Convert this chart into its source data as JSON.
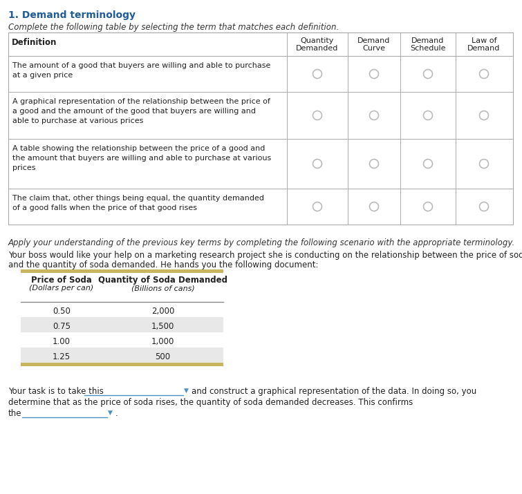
{
  "title": "1. Demand terminology",
  "title_color": "#1F5C99",
  "bg_color": "#FFFFFF",
  "subtitle": "Complete the following table by selecting the term that matches each definition.",
  "table_headers": [
    "Definition",
    "Quantity\nDemanded",
    "Demand\nCurve",
    "Demand\nSchedule",
    "Law of\nDemand"
  ],
  "table_rows": [
    "The amount of a good that buyers are willing and able to purchase\nat a given price",
    "A graphical representation of the relationship between the price of\na good and the amount of the good that buyers are willing and\nable to purchase at various prices",
    "A table showing the relationship between the price of a good and\nthe amount that buyers are willing and able to purchase at various\nprices",
    "The claim that, other things being equal, the quantity demanded\nof a good falls when the price of that good rises"
  ],
  "scenario_intro": "Apply your understanding of the previous key terms by completing the following scenario with the appropriate terminology.",
  "scenario_text1": "Your boss would like your help on a marketing research project she is conducting on the relationship between the price of soda",
  "scenario_text2": "and the quantity of soda demanded. He hands you the following document:",
  "soda_table_col1_header": "Price of Soda",
  "soda_table_col1_sub": "(Dollars per can)",
  "soda_table_col2_header": "Quantity of Soda Demanded",
  "soda_table_col2_sub": "(Billions of cans)",
  "soda_prices": [
    "0.50",
    "0.75",
    "1.00",
    "1.25"
  ],
  "soda_quantities": [
    "2,000",
    "1,500",
    "1,000",
    "500"
  ],
  "bottom_text1": "Your task is to take this",
  "bottom_text2": "and construct a graphical representation of the data. In doing so, you",
  "bottom_text3": "determine that as the price of soda rises, the quantity of soda demanded decreases. This confirms",
  "bottom_text4": "the",
  "bottom_text5": ".",
  "dropdown_color": "#4A90C4",
  "table_border_color": "#AAAAAA",
  "soda_table_top_color": "#C8B560",
  "soda_table_alt_bg": "#E8E8E8",
  "radio_color": "#BBBBBB"
}
